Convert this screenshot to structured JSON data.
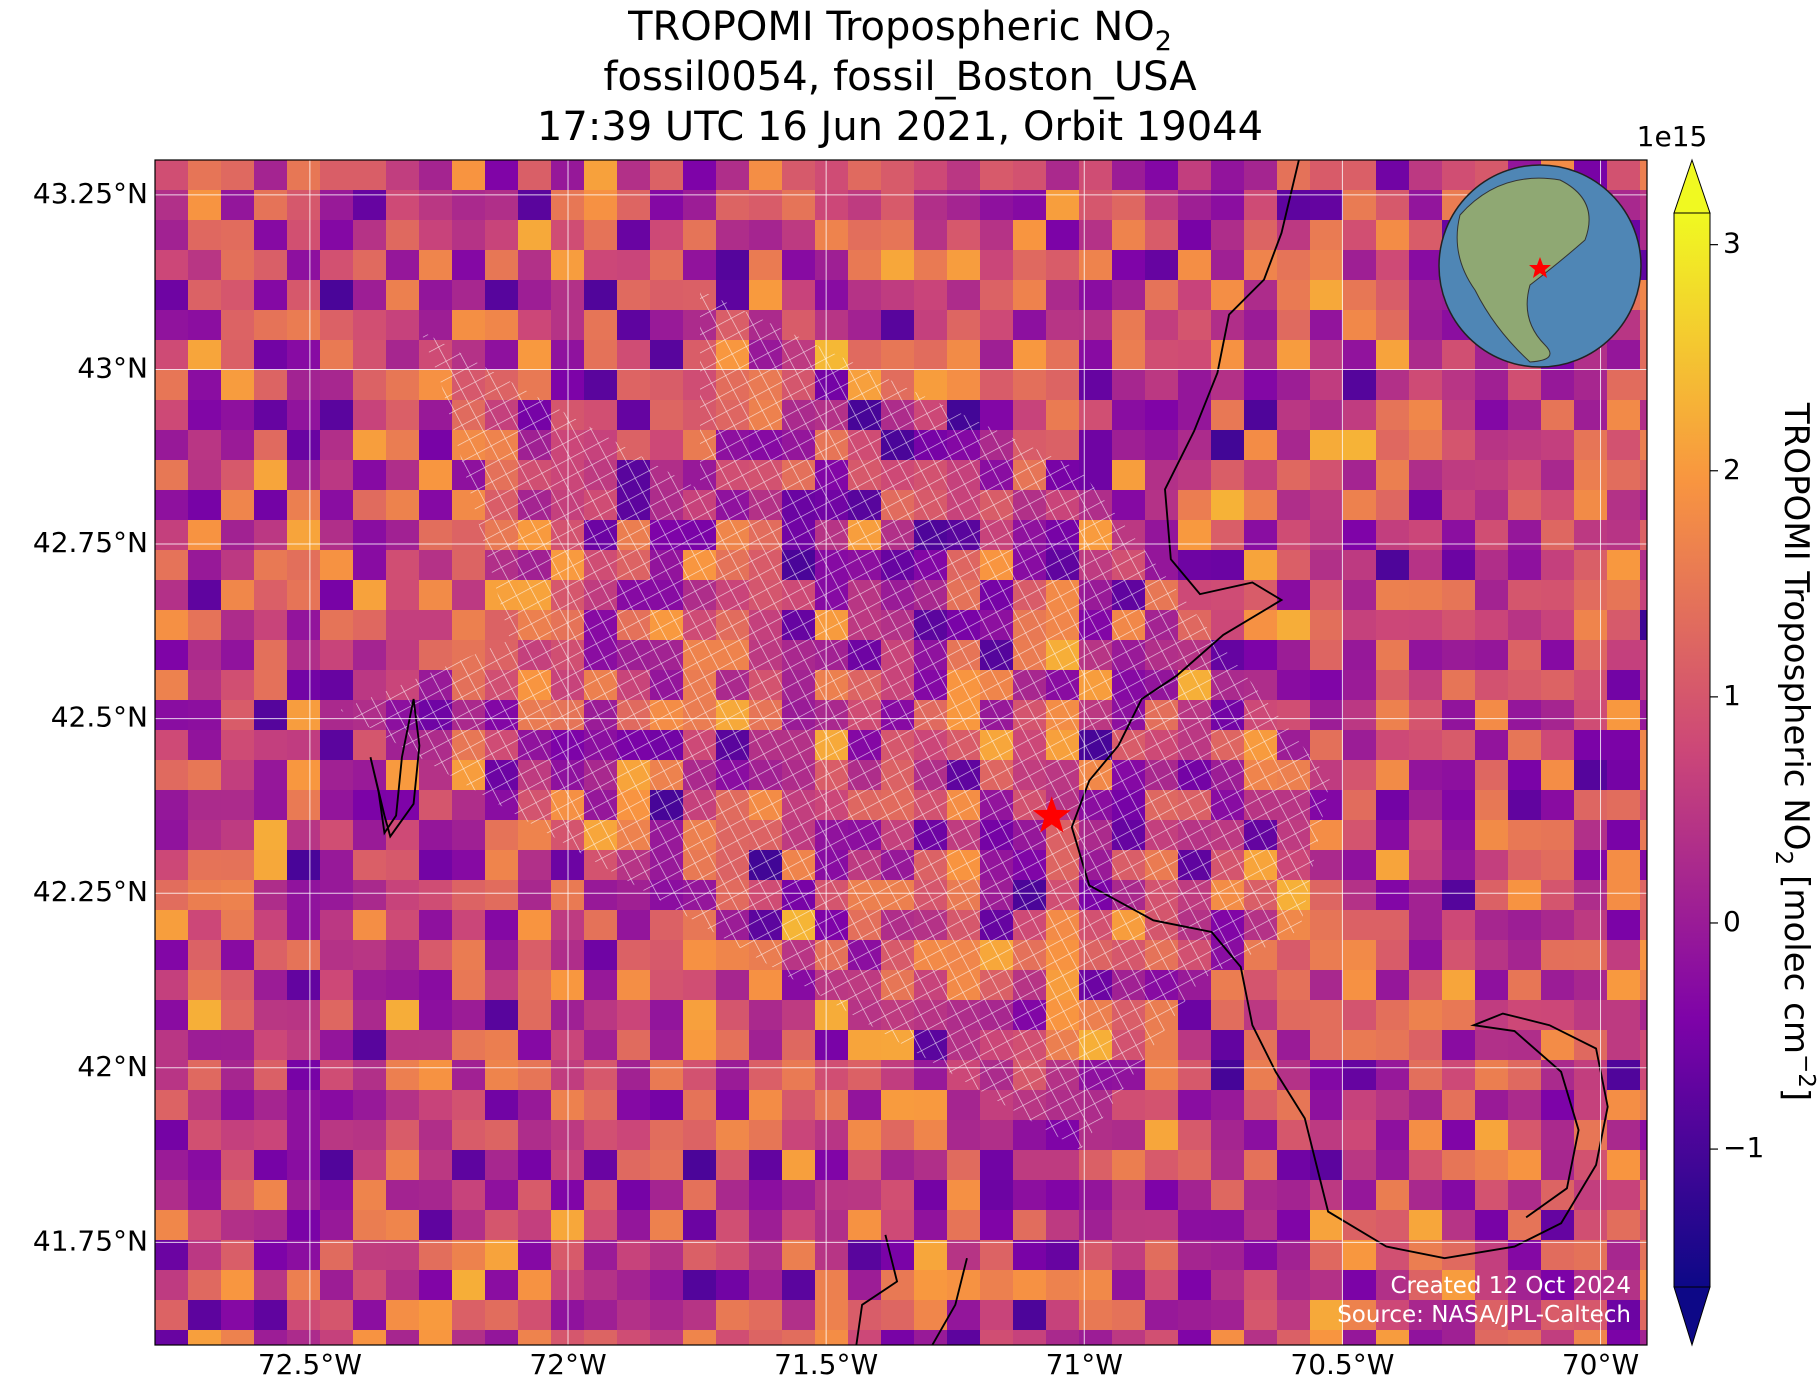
{
  "title": {
    "line1": "TROPOMI Tropospheric NO",
    "line1_subscript": "2",
    "line2": "fossil0054, fossil_Boston_USA",
    "line3": "17:39 UTC 16 Jun 2021, Orbit 19044"
  },
  "map": {
    "type": "map",
    "xlim": [
      -72.8,
      -69.91
    ],
    "ylim": [
      41.603,
      43.3
    ],
    "xticks": [
      {
        "value": -72.5,
        "label": "72.5°W"
      },
      {
        "value": -72,
        "label": "72°W"
      },
      {
        "value": -71.5,
        "label": "71.5°W"
      },
      {
        "value": -71,
        "label": "71°W"
      },
      {
        "value": -70.5,
        "label": "70.5°W"
      },
      {
        "value": -70,
        "label": "70°W"
      }
    ],
    "yticks": [
      {
        "value": 41.75,
        "label": "41.75°N"
      },
      {
        "value": 42,
        "label": "42°N"
      },
      {
        "value": 42.25,
        "label": "42.25°N"
      },
      {
        "value": 42.5,
        "label": "42.5°N"
      },
      {
        "value": 42.75,
        "label": "42.75°N"
      },
      {
        "value": 43,
        "label": "43°N"
      },
      {
        "value": 43.25,
        "label": "43.25°N"
      }
    ],
    "grid": true,
    "target": {
      "lon": -71.063,
      "lat": 42.36,
      "color": "#ff0000"
    }
  },
  "colorbar": {
    "label": "TROPOMI Tropospheric NO",
    "label_subscript": "2",
    "label_units": "[molec cm",
    "label_superscript": "−2",
    "label_close": "]",
    "exponent": "1e15",
    "colormap": "plasma",
    "clim": [
      -1.61,
      3.14
    ],
    "ticks": [
      {
        "value": -1,
        "label": "−1"
      },
      0,
      1,
      2,
      3
    ]
  },
  "footer": {
    "created": "Created 12 Oct 2024",
    "source": "Source: NASA/JPL-Caltech"
  }
}
